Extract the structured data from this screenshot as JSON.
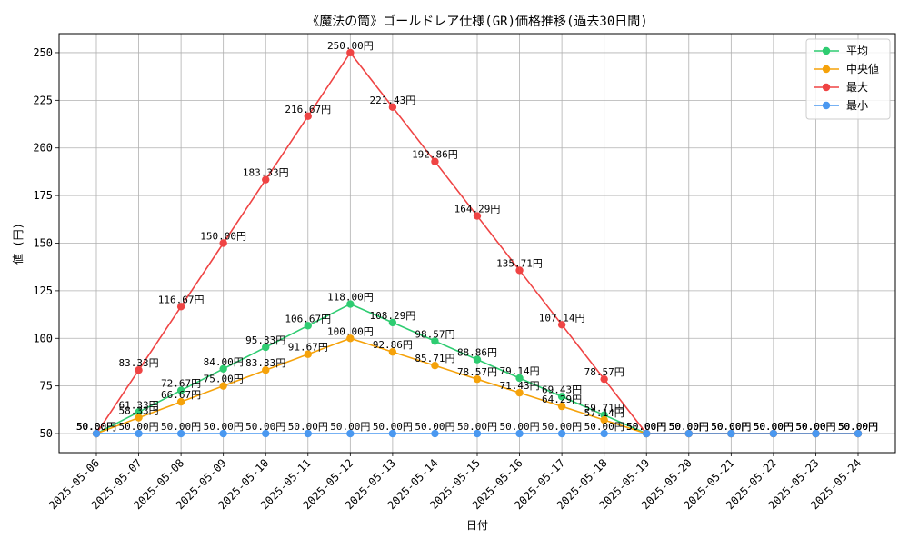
{
  "chart_data": {
    "type": "line",
    "title": "《魔法の筒》ゴールドレア仕様(GR)価格推移(過去30日間)",
    "xlabel": "日付",
    "ylabel": "値 (円)",
    "ylim": [
      40,
      260
    ],
    "yticks": [
      50,
      75,
      100,
      125,
      150,
      175,
      200,
      225,
      250
    ],
    "grid": true,
    "legend_position": "top-right",
    "value_suffix": "円",
    "categories": [
      "2025-05-06",
      "2025-05-07",
      "2025-05-08",
      "2025-05-09",
      "2025-05-10",
      "2025-05-11",
      "2025-05-12",
      "2025-05-13",
      "2025-05-14",
      "2025-05-15",
      "2025-05-16",
      "2025-05-17",
      "2025-05-18",
      "2025-05-19",
      "2025-05-20",
      "2025-05-21",
      "2025-05-22",
      "2025-05-23",
      "2025-05-24"
    ],
    "series": [
      {
        "name": "平均",
        "color": "#2ecc71",
        "values": [
          50.0,
          61.33,
          72.67,
          84.0,
          95.33,
          106.67,
          118.0,
          108.29,
          98.57,
          88.86,
          79.14,
          69.43,
          59.71,
          50.0,
          50.0,
          50.0,
          50.0,
          50.0,
          50.0
        ]
      },
      {
        "name": "中央値",
        "color": "#f5a20a",
        "values": [
          50.0,
          58.33,
          66.67,
          75.0,
          83.33,
          91.67,
          100.0,
          92.86,
          85.71,
          78.57,
          71.43,
          64.29,
          57.14,
          50.0,
          50.0,
          50.0,
          50.0,
          50.0,
          50.0
        ]
      },
      {
        "name": "最大",
        "color": "#ef4444",
        "values": [
          50.0,
          83.33,
          116.67,
          150.0,
          183.33,
          216.67,
          250.0,
          221.43,
          192.86,
          164.29,
          135.71,
          107.14,
          78.57,
          50.0,
          50.0,
          50.0,
          50.0,
          50.0,
          50.0
        ]
      },
      {
        "name": "最小",
        "color": "#4a98f0",
        "values": [
          50.0,
          50.0,
          50.0,
          50.0,
          50.0,
          50.0,
          50.0,
          50.0,
          50.0,
          50.0,
          50.0,
          50.0,
          50.0,
          50.0,
          50.0,
          50.0,
          50.0,
          50.0,
          50.0
        ]
      }
    ]
  }
}
